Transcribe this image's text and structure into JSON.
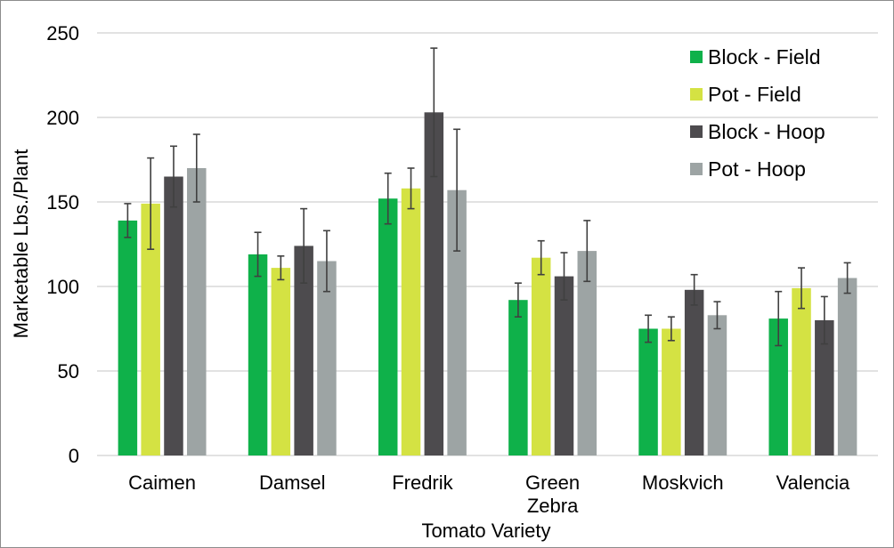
{
  "chart_data": {
    "type": "bar",
    "title": "",
    "xlabel": "Tomato Variety",
    "ylabel": "Marketable Lbs./Plant",
    "ylim": [
      0,
      250
    ],
    "yticks": [
      0,
      50,
      100,
      150,
      200,
      250
    ],
    "ytick_labels": [
      "0",
      "50",
      "100",
      "150",
      "200",
      "250"
    ],
    "grid": true,
    "legend_position": "top-right",
    "categories": [
      "Caimen",
      "Damsel",
      "Fredrik",
      "Green Zebra",
      "Moskvich",
      "Valencia"
    ],
    "category_lines": [
      [
        "Caimen"
      ],
      [
        "Damsel"
      ],
      [
        "Fredrik"
      ],
      [
        "Green",
        "Zebra"
      ],
      [
        "Moskvich"
      ],
      [
        "Valencia"
      ]
    ],
    "series": [
      {
        "name": "Block - Field",
        "color": "#0fb14a",
        "values": [
          139,
          119,
          152,
          92,
          75,
          81
        ],
        "errors": [
          10,
          13,
          15,
          10,
          8,
          16
        ]
      },
      {
        "name": "Pot - Field",
        "color": "#d4e243",
        "values": [
          149,
          111,
          158,
          117,
          75,
          99
        ],
        "errors": [
          27,
          7,
          12,
          10,
          7,
          12
        ]
      },
      {
        "name": "Block - Hoop",
        "color": "#4d4b4e",
        "values": [
          165,
          124,
          203,
          106,
          98,
          80
        ],
        "errors": [
          18,
          22,
          38,
          14,
          9,
          14
        ]
      },
      {
        "name": "Pot - Hoop",
        "color": "#9da4a4",
        "values": [
          170,
          115,
          157,
          121,
          83,
          105
        ],
        "errors": [
          20,
          18,
          36,
          18,
          8,
          9
        ]
      }
    ]
  }
}
